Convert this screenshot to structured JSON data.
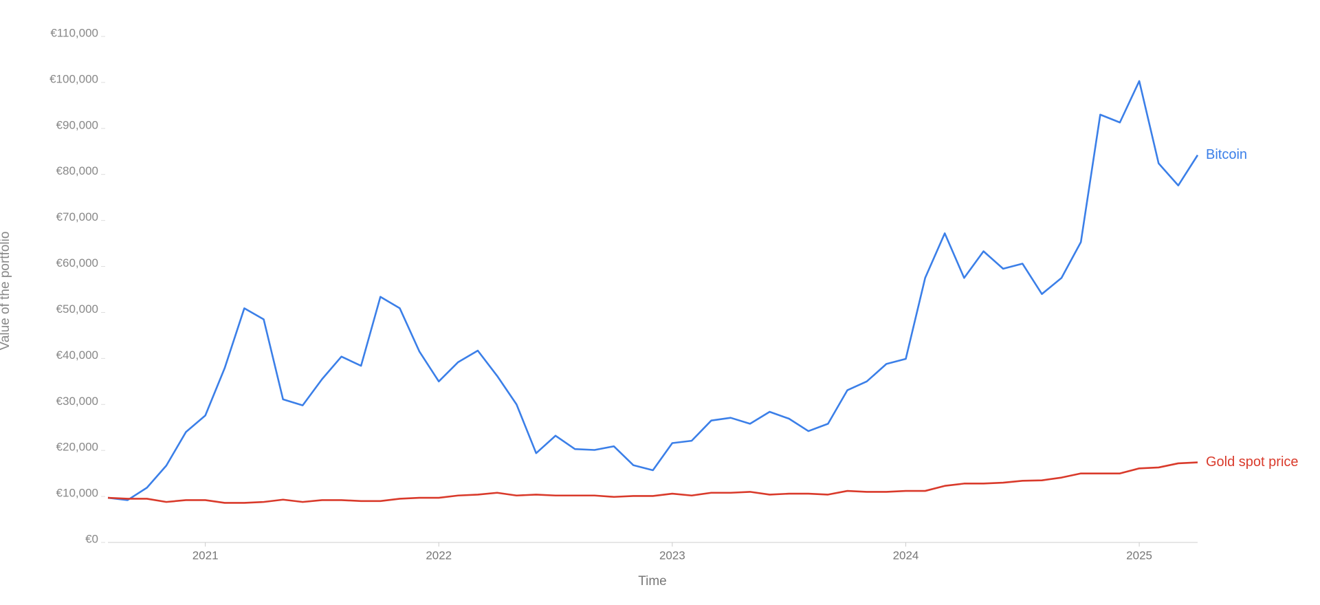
{
  "chart_data": {
    "type": "line",
    "x_label": "Time",
    "y_label": "Value of the portfolio",
    "x": [
      2020.583,
      2020.667,
      2020.75,
      2020.833,
      2020.917,
      2021,
      2021.083,
      2021.167,
      2021.25,
      2021.333,
      2021.417,
      2021.5,
      2021.583,
      2021.667,
      2021.75,
      2021.833,
      2021.917,
      2022,
      2022.083,
      2022.167,
      2022.25,
      2022.333,
      2022.417,
      2022.5,
      2022.583,
      2022.667,
      2022.75,
      2022.833,
      2022.917,
      2023,
      2023.083,
      2023.167,
      2023.25,
      2023.333,
      2023.417,
      2023.5,
      2023.583,
      2023.667,
      2023.75,
      2023.833,
      2023.917,
      2024,
      2024.083,
      2024.167,
      2024.25,
      2024.333,
      2024.417,
      2024.5,
      2024.583,
      2024.667,
      2024.75,
      2024.833,
      2024.917,
      2025,
      2025.083,
      2025.167,
      2025.25
    ],
    "series": [
      {
        "name": "Bitcoin",
        "color": "#3b7fe8",
        "values": [
          9700,
          9200,
          11900,
          16700,
          24000,
          27600,
          37900,
          50900,
          48500,
          31100,
          29800,
          35500,
          40400,
          38400,
          53400,
          50900,
          41500,
          35000,
          39200,
          41700,
          36200,
          30000,
          19400,
          23200,
          20300,
          20100,
          20900,
          16800,
          15700,
          21600,
          22100,
          26500,
          27100,
          25800,
          28400,
          26900,
          24200,
          25800,
          33100,
          35000,
          38800,
          39900,
          57500,
          67200,
          57500,
          63300,
          59500,
          60600,
          54000,
          57500,
          65300,
          93000,
          91300,
          100300,
          82400,
          77600,
          84200
        ]
      },
      {
        "name": "Gold spot price",
        "color": "#d93a2b",
        "values": [
          9700,
          9500,
          9500,
          8800,
          9200,
          9200,
          8600,
          8600,
          8800,
          9300,
          8800,
          9200,
          9200,
          9000,
          9000,
          9500,
          9700,
          9700,
          10200,
          10400,
          10800,
          10200,
          10400,
          10200,
          10200,
          10200,
          9900,
          10100,
          10100,
          10600,
          10200,
          10800,
          10800,
          11000,
          10400,
          10600,
          10600,
          10400,
          11200,
          11000,
          11000,
          11200,
          11200,
          12300,
          12800,
          12800,
          13000,
          13400,
          13500,
          14100,
          15000,
          15000,
          15000,
          16100,
          16300,
          17200,
          17400
        ]
      }
    ],
    "xlim": [
      2020.583,
      2025.25
    ],
    "xticks": [
      2021,
      2022,
      2023,
      2024,
      2025
    ],
    "ylim": [
      0,
      110000
    ],
    "yticks": [
      {
        "value": 0,
        "label": "€0"
      },
      {
        "value": 10000,
        "label": "€10,000"
      },
      {
        "value": 20000,
        "label": "€20,000"
      },
      {
        "value": 30000,
        "label": "€30,000"
      },
      {
        "value": 40000,
        "label": "€40,000"
      },
      {
        "value": 50000,
        "label": "€50,000"
      },
      {
        "value": 60000,
        "label": "€60,000"
      },
      {
        "value": 70000,
        "label": "€70,000"
      },
      {
        "value": 80000,
        "label": "€80,000"
      },
      {
        "value": 90000,
        "label": "€90,000"
      },
      {
        "value": 100000,
        "label": "€100,000"
      },
      {
        "value": 110000,
        "label": "€110,000"
      }
    ],
    "grid": false
  }
}
